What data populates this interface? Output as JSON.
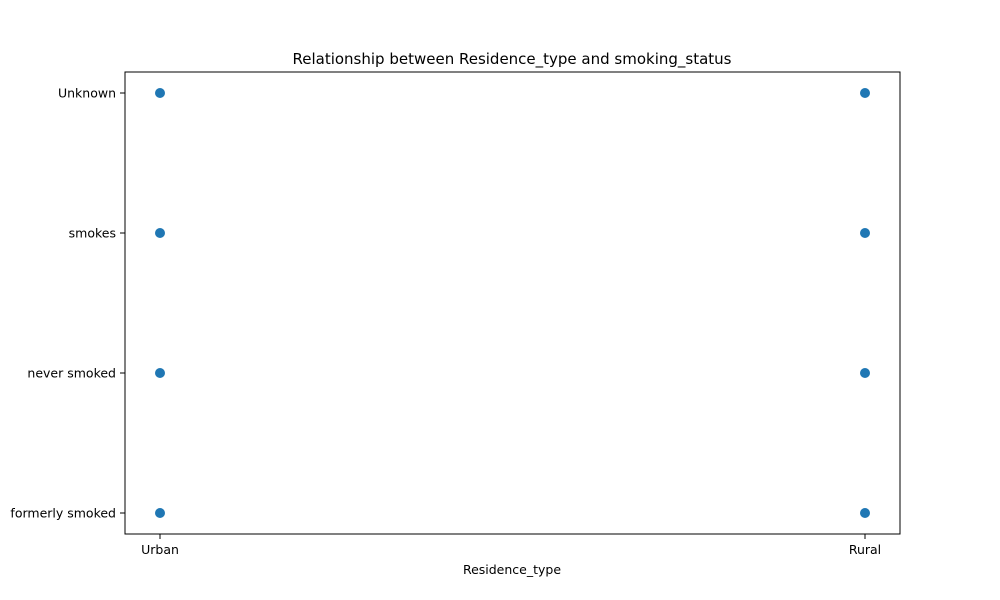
{
  "chart_data": {
    "type": "scatter",
    "title": "Relationship between Residence_type and smoking_status",
    "xlabel": "Residence_type",
    "ylabel": "",
    "x_categories": [
      "Urban",
      "Rural"
    ],
    "y_categories": [
      "formerly smoked",
      "never smoked",
      "smokes",
      "Unknown"
    ],
    "points": [
      {
        "x": "Urban",
        "y": "Unknown"
      },
      {
        "x": "Urban",
        "y": "smokes"
      },
      {
        "x": "Urban",
        "y": "never smoked"
      },
      {
        "x": "Urban",
        "y": "formerly smoked"
      },
      {
        "x": "Rural",
        "y": "Unknown"
      },
      {
        "x": "Rural",
        "y": "smokes"
      },
      {
        "x": "Rural",
        "y": "never smoked"
      },
      {
        "x": "Rural",
        "y": "formerly smoked"
      }
    ],
    "marker_color": "#1f77b4",
    "grid": false,
    "legend": "none"
  }
}
